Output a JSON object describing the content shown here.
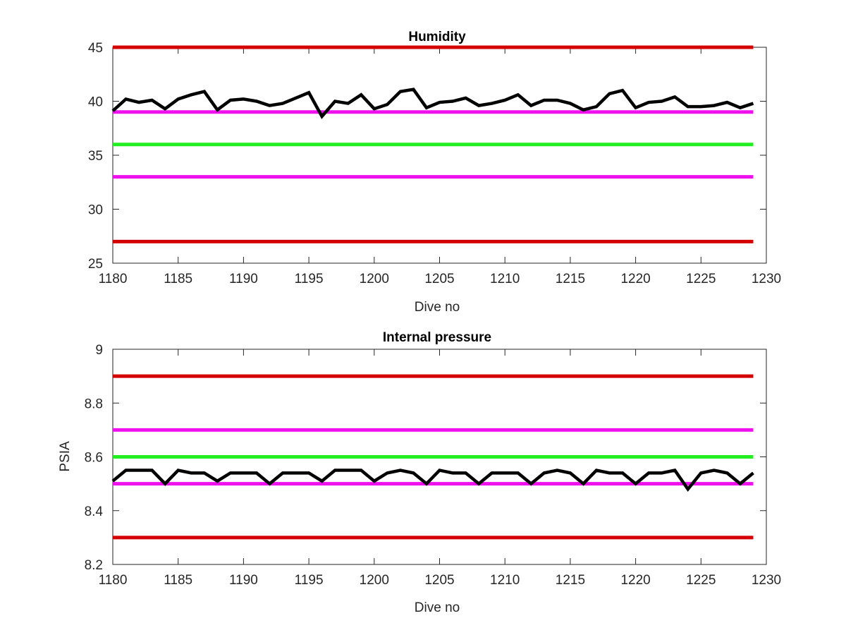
{
  "chart_data": [
    {
      "type": "line",
      "title": "Humidity",
      "xlabel": "Dive no",
      "ylabel": "",
      "xlim": [
        1180,
        1230
      ],
      "ylim": [
        25,
        45
      ],
      "xticks": [
        1180,
        1185,
        1190,
        1195,
        1200,
        1205,
        1210,
        1215,
        1220,
        1225,
        1230
      ],
      "yticks": [
        25,
        30,
        35,
        40,
        45
      ],
      "grid": false,
      "thresholds": [
        {
          "value": 45,
          "color": "#d40000"
        },
        {
          "value": 39,
          "color": "#ee11ee"
        },
        {
          "value": 36,
          "color": "#22ee22"
        },
        {
          "value": 33,
          "color": "#ee11ee"
        },
        {
          "value": 27,
          "color": "#d40000"
        }
      ],
      "series": [
        {
          "color": "#000000",
          "x": [
            1180,
            1181,
            1182,
            1183,
            1184,
            1185,
            1186,
            1187,
            1188,
            1189,
            1190,
            1191,
            1192,
            1193,
            1194,
            1195,
            1196,
            1197,
            1198,
            1199,
            1200,
            1201,
            1202,
            1203,
            1204,
            1205,
            1206,
            1207,
            1208,
            1209,
            1210,
            1211,
            1212,
            1213,
            1214,
            1215,
            1216,
            1217,
            1218,
            1219,
            1220,
            1221,
            1222,
            1223,
            1224,
            1225,
            1226,
            1227,
            1228,
            1229
          ],
          "values": [
            39.1,
            40.2,
            39.9,
            40.1,
            39.3,
            40.2,
            40.6,
            40.9,
            39.2,
            40.1,
            40.2,
            40.0,
            39.6,
            39.8,
            40.3,
            40.8,
            38.6,
            40.0,
            39.8,
            40.6,
            39.3,
            39.7,
            40.9,
            41.1,
            39.4,
            39.9,
            40.0,
            40.3,
            39.6,
            39.8,
            40.1,
            40.6,
            39.6,
            40.1,
            40.1,
            39.8,
            39.2,
            39.5,
            40.7,
            41.0,
            39.4,
            39.9,
            40.0,
            40.4,
            39.5,
            39.5,
            39.6,
            39.9,
            39.4,
            39.8
          ]
        }
      ]
    },
    {
      "type": "line",
      "title": "Internal pressure",
      "xlabel": "Dive no",
      "ylabel": "PSIA",
      "xlim": [
        1180,
        1230
      ],
      "ylim": [
        8.2,
        9
      ],
      "xticks": [
        1180,
        1185,
        1190,
        1195,
        1200,
        1205,
        1210,
        1215,
        1220,
        1225,
        1230
      ],
      "yticks": [
        8.2,
        8.4,
        8.6,
        8.8,
        9
      ],
      "grid": false,
      "thresholds": [
        {
          "value": 8.9,
          "color": "#d40000"
        },
        {
          "value": 8.7,
          "color": "#ee11ee"
        },
        {
          "value": 8.6,
          "color": "#22ee22"
        },
        {
          "value": 8.5,
          "color": "#ee11ee"
        },
        {
          "value": 8.3,
          "color": "#d40000"
        }
      ],
      "series": [
        {
          "color": "#000000",
          "x": [
            1180,
            1181,
            1182,
            1183,
            1184,
            1185,
            1186,
            1187,
            1188,
            1189,
            1190,
            1191,
            1192,
            1193,
            1194,
            1195,
            1196,
            1197,
            1198,
            1199,
            1200,
            1201,
            1202,
            1203,
            1204,
            1205,
            1206,
            1207,
            1208,
            1209,
            1210,
            1211,
            1212,
            1213,
            1214,
            1215,
            1216,
            1217,
            1218,
            1219,
            1220,
            1221,
            1222,
            1223,
            1224,
            1225,
            1226,
            1227,
            1228,
            1229
          ],
          "values": [
            8.51,
            8.55,
            8.55,
            8.55,
            8.5,
            8.55,
            8.54,
            8.54,
            8.51,
            8.54,
            8.54,
            8.54,
            8.5,
            8.54,
            8.54,
            8.54,
            8.51,
            8.55,
            8.55,
            8.55,
            8.51,
            8.54,
            8.55,
            8.54,
            8.5,
            8.55,
            8.54,
            8.54,
            8.5,
            8.54,
            8.54,
            8.54,
            8.5,
            8.54,
            8.55,
            8.54,
            8.5,
            8.55,
            8.54,
            8.54,
            8.5,
            8.54,
            8.54,
            8.55,
            8.48,
            8.54,
            8.55,
            8.54,
            8.5,
            8.54
          ]
        }
      ]
    }
  ]
}
